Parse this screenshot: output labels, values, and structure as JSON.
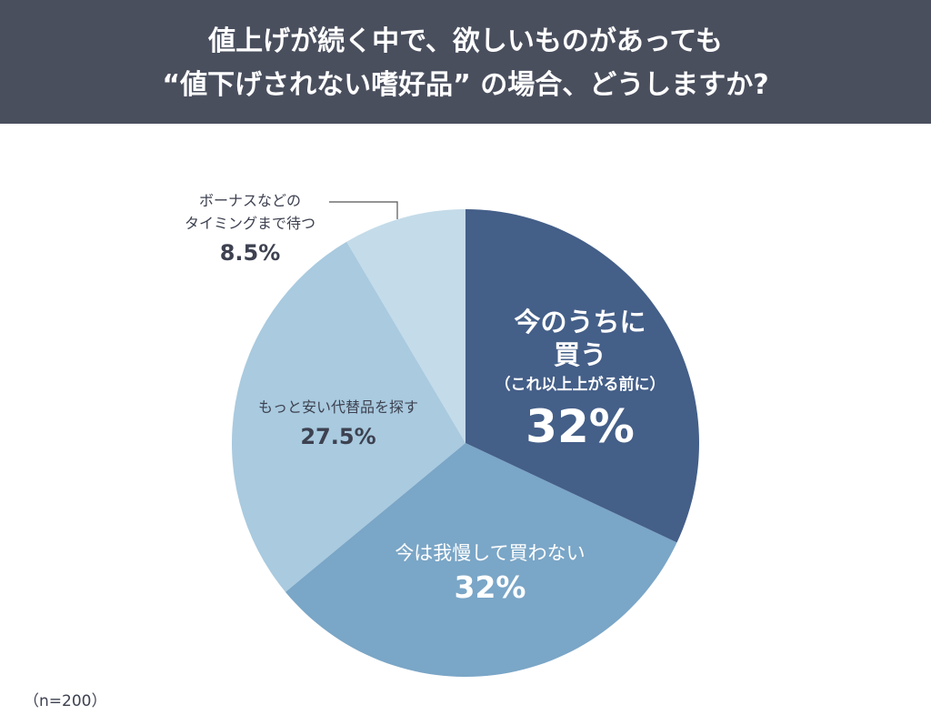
{
  "title": {
    "line1": "値上げが続く中で、欲しいものがあっても",
    "line2": "“値下げされない嗜好品” の場合、どうしますか?"
  },
  "sample_note": "（n=200）",
  "chart_data": {
    "type": "pie",
    "start": "12 o'clock, clockwise",
    "slices": [
      {
        "label": "今のうちに買う（これ以上上がる前に）",
        "label_lines": [
          "今のうちに",
          "買う",
          "（これ以上上がる前に）"
        ],
        "value": 32,
        "display": "32%",
        "color": "#445f88"
      },
      {
        "label": "今は我慢して買わない",
        "label_lines": [
          "今は我慢して買わない"
        ],
        "value": 32,
        "display": "32%",
        "color": "#7aa6c7"
      },
      {
        "label": "もっと安い代替品を探す",
        "label_lines": [
          "もっと安い代替品を探す"
        ],
        "value": 27.5,
        "display": "27.5%",
        "color": "#a9cadf"
      },
      {
        "label": "ボーナスなどのタイミングまで待つ",
        "label_lines": [
          "ボーナスなどの",
          "タイミングまで待つ"
        ],
        "value": 8.5,
        "display": "8.5%",
        "color": "#c4dbe9"
      }
    ]
  }
}
